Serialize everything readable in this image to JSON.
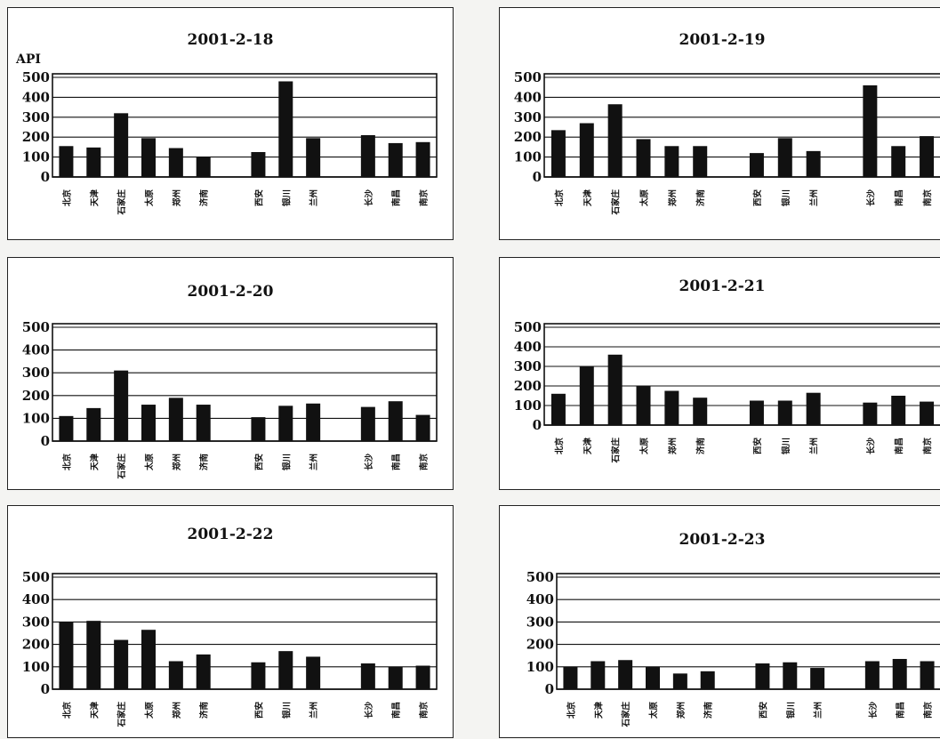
{
  "colors": {
    "bar": "#111111",
    "grid": "#111111",
    "background": "#ffffff"
  },
  "chart_data": [
    {
      "type": "bar",
      "title": "2001-2-18",
      "ylabel": "API",
      "ylim": [
        0,
        500
      ],
      "yticks": [
        "500",
        "400",
        "300",
        "200",
        "100",
        "0"
      ],
      "grid": true,
      "categories": [
        "北京",
        "天津",
        "石家庄",
        "太原",
        "郑州",
        "济南",
        "西安",
        "银川",
        "兰州",
        "长沙",
        "南昌",
        "南京"
      ],
      "values": [
        155,
        148,
        320,
        195,
        145,
        100,
        125,
        480,
        195,
        210,
        170,
        175
      ]
    },
    {
      "type": "bar",
      "title": "2001-2-19",
      "ylabel": "",
      "ylim": [
        0,
        500
      ],
      "yticks": [
        "500",
        "400",
        "300",
        "200",
        "100",
        "0"
      ],
      "grid": true,
      "categories": [
        "北京",
        "天津",
        "石家庄",
        "太原",
        "郑州",
        "济南",
        "西安",
        "银川",
        "兰州",
        "长沙",
        "南昌",
        "南京"
      ],
      "values": [
        235,
        270,
        365,
        190,
        155,
        155,
        120,
        195,
        130,
        460,
        155,
        205
      ]
    },
    {
      "type": "bar",
      "title": "2001-2-20",
      "ylabel": "",
      "ylim": [
        0,
        500
      ],
      "yticks": [
        "500",
        "400",
        "300",
        "200",
        "100",
        "0"
      ],
      "grid": true,
      "categories": [
        "北京",
        "天津",
        "石家庄",
        "太原",
        "郑州",
        "济南",
        "西安",
        "银川",
        "兰州",
        "长沙",
        "南昌",
        "南京"
      ],
      "values": [
        110,
        145,
        310,
        160,
        190,
        160,
        105,
        155,
        165,
        150,
        175,
        115
      ]
    },
    {
      "type": "bar",
      "title": "2001-2-21",
      "ylabel": "",
      "ylim": [
        0,
        500
      ],
      "yticks": [
        "500",
        "400",
        "300",
        "200",
        "100",
        "0"
      ],
      "grid": true,
      "categories": [
        "北京",
        "天津",
        "石家庄",
        "太原",
        "郑州",
        "济南",
        "西安",
        "银川",
        "兰州",
        "长沙",
        "南昌",
        "南京"
      ],
      "values": [
        160,
        300,
        360,
        200,
        175,
        140,
        125,
        125,
        165,
        115,
        150,
        120
      ]
    },
    {
      "type": "bar",
      "title": "2001-2-22",
      "ylabel": "",
      "ylim": [
        0,
        500
      ],
      "yticks": [
        "500",
        "400",
        "300",
        "200",
        "100",
        "0"
      ],
      "grid": true,
      "categories": [
        "北京",
        "天津",
        "石家庄",
        "太原",
        "郑州",
        "济南",
        "西安",
        "银川",
        "兰州",
        "长沙",
        "南昌",
        "南京"
      ],
      "values": [
        300,
        305,
        220,
        265,
        125,
        155,
        120,
        170,
        145,
        115,
        100,
        105
      ]
    },
    {
      "type": "bar",
      "title": "2001-2-23",
      "ylabel": "",
      "ylim": [
        0,
        500
      ],
      "yticks": [
        "500",
        "400",
        "300",
        "200",
        "100",
        "0"
      ],
      "grid": true,
      "categories": [
        "北京",
        "天津",
        "石家庄",
        "太原",
        "郑州",
        "济南",
        "西安",
        "银川",
        "兰州",
        "长沙",
        "南昌",
        "南京"
      ],
      "values": [
        100,
        125,
        130,
        100,
        70,
        80,
        115,
        120,
        95,
        125,
        135,
        125
      ]
    }
  ]
}
